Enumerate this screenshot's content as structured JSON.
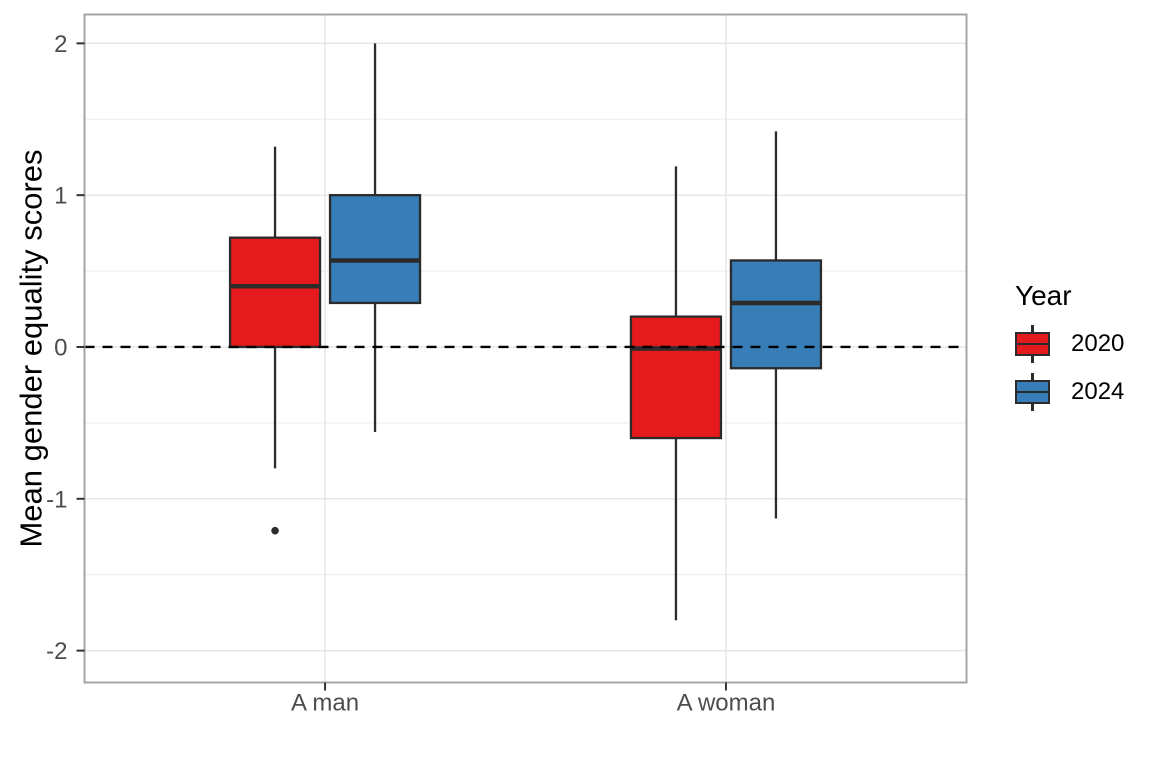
{
  "chart_data": {
    "type": "boxplot",
    "title": "",
    "xlabel": "",
    "ylabel": "Mean gender equality scores",
    "categories": [
      "A man",
      "A woman"
    ],
    "ylim": [
      -2.21,
      2.19
    ],
    "y_major_ticks": [
      2,
      1,
      0,
      -1,
      -2
    ],
    "y_tick_labels": [
      "2",
      "1",
      "0",
      "-1",
      "-2"
    ],
    "y_minor_gridlines": [
      1.5,
      0.5,
      -0.5,
      -1.5
    ],
    "grid": "on",
    "reference_line": {
      "value": 0,
      "style": "dashed",
      "color": "#000000"
    },
    "legend": {
      "title": "Year",
      "position": "right"
    },
    "series": [
      {
        "name": "2020",
        "fill": "#E41A1C",
        "boxes": [
          {
            "category": "A man",
            "whisker_low": -0.8,
            "q1": 0.0,
            "median": 0.4,
            "q3": 0.72,
            "whisker_high": 1.32,
            "outliers": [
              -1.21
            ]
          },
          {
            "category": "A woman",
            "whisker_low": -1.8,
            "q1": -0.6,
            "median": -0.01,
            "q3": 0.2,
            "whisker_high": 1.19,
            "outliers": []
          }
        ]
      },
      {
        "name": "2024",
        "fill": "#377EB8",
        "boxes": [
          {
            "category": "A man",
            "whisker_low": -0.56,
            "q1": 0.29,
            "median": 0.57,
            "q3": 1.0,
            "whisker_high": 2.0,
            "outliers": []
          },
          {
            "category": "A woman",
            "whisker_low": -1.13,
            "q1": -0.14,
            "median": 0.29,
            "q3": 0.57,
            "whisker_high": 1.42,
            "outliers": []
          }
        ]
      }
    ]
  },
  "style": {
    "background": "#FFFFFF",
    "box_outline": "#2B2B2B",
    "grid_major": "#E4E4E4",
    "grid_minor": "#EDEDED",
    "panel_border": "#A4A4A4",
    "tick_color": "#333333",
    "axis_text": "#4D4D4D",
    "title_text": "#000000",
    "outlier_color": "#2B2B2B"
  }
}
